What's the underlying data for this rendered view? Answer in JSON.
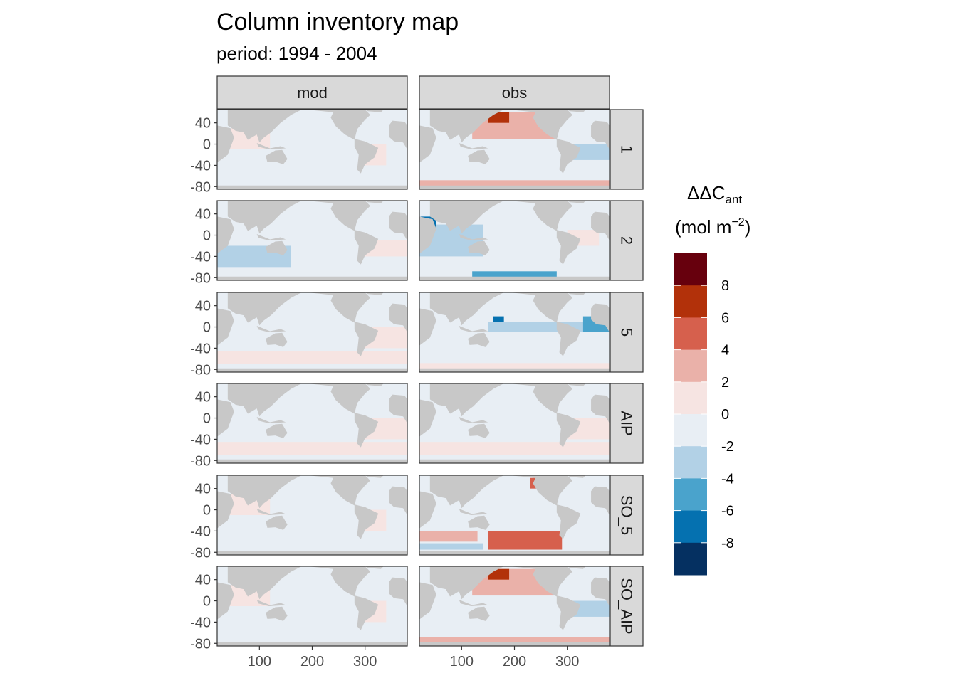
{
  "chart_data": {
    "type": "heatmap",
    "title": "Column inventory map",
    "subtitle": "period: 1994 - 2004",
    "facet_columns": [
      "mod",
      "obs"
    ],
    "facet_rows": [
      "1",
      "2",
      "5",
      "AIP",
      "SO_5",
      "SO_AIP"
    ],
    "x_ticks": [
      "100",
      "200",
      "300"
    ],
    "y_ticks": [
      "40",
      "0",
      "-40",
      "-80"
    ],
    "xlim": [
      20,
      380
    ],
    "ylim": [
      -85,
      65
    ],
    "legend": {
      "title_main": "ΔΔC",
      "title_sub": "ant",
      "unit_prefix": "(mol m",
      "unit_sup": "−2",
      "unit_suffix": ")",
      "labels": [
        "8",
        "6",
        "4",
        "2",
        "0",
        "-2",
        "-4",
        "-6",
        "-8"
      ],
      "colors": [
        "#67000D",
        "#B2310A",
        "#D6604D",
        "#EAB1A9",
        "#F6E4E2",
        "#E8EEF4",
        "#B2D1E6",
        "#4AA3CC",
        "#0571B0",
        "#053061"
      ],
      "position": "right"
    },
    "land_color": "#C8C8C8",
    "strip_fill": "#D9D9D9",
    "panel_bias": [
      [
        "slight-positive",
        "mixed-positive"
      ],
      [
        "slight-negative",
        "strong-negative-west"
      ],
      [
        "near-zero",
        "mixed-negative"
      ],
      [
        "near-zero",
        "near-zero"
      ],
      [
        "slight-positive",
        "strong-positive-south"
      ],
      [
        "slight-positive",
        "mixed-positive"
      ]
    ]
  }
}
